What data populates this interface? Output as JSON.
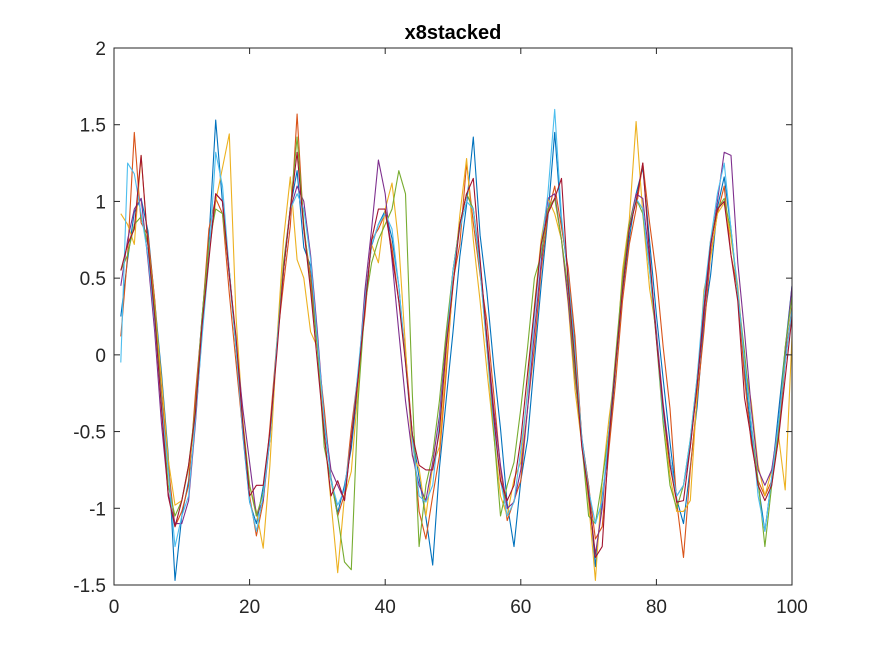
{
  "chart_data": {
    "type": "line",
    "title": "x8stacked",
    "xlabel": "",
    "ylabel": "",
    "xlim": [
      0,
      100
    ],
    "ylim": [
      -1.5,
      2
    ],
    "xticks": [
      0,
      20,
      40,
      60,
      80,
      100
    ],
    "yticks": [
      -1.5,
      -1,
      -0.5,
      0,
      0.5,
      1,
      1.5,
      2
    ],
    "xtick_labels": [
      "0",
      "20",
      "40",
      "60",
      "80",
      "100"
    ],
    "ytick_labels": [
      "-1.5",
      "-1",
      "-0.5",
      "0",
      "0.5",
      "1",
      "1.5",
      "2"
    ],
    "grid": false,
    "legend": "none",
    "box": true,
    "x": [
      1,
      2,
      3,
      4,
      5,
      6,
      7,
      8,
      9,
      10,
      11,
      12,
      13,
      14,
      15,
      16,
      17,
      18,
      19,
      20,
      21,
      22,
      23,
      24,
      25,
      26,
      27,
      28,
      29,
      30,
      31,
      32,
      33,
      34,
      35,
      36,
      37,
      38,
      39,
      40,
      41,
      42,
      43,
      44,
      45,
      46,
      47,
      48,
      49,
      50,
      51,
      52,
      53,
      54,
      55,
      56,
      57,
      58,
      59,
      60,
      61,
      62,
      63,
      64,
      65,
      66,
      67,
      68,
      69,
      70,
      71,
      72,
      73,
      74,
      75,
      76,
      77,
      78,
      79,
      80,
      81,
      82,
      83,
      84,
      85,
      86,
      87,
      88,
      89,
      90,
      91,
      92,
      93,
      94,
      95,
      96,
      97,
      98,
      99,
      100
    ],
    "series": [
      {
        "color": "#0072BD",
        "values": [
          0.25,
          0.62,
          0.93,
          1.02,
          0.81,
          0.35,
          -0.12,
          -0.65,
          -1.47,
          -1.05,
          -0.82,
          -0.3,
          0.25,
          0.75,
          1.53,
          0.99,
          0.52,
          0.05,
          -0.52,
          -0.96,
          -1.1,
          -0.86,
          -0.52,
          0.04,
          0.55,
          0.96,
          1.2,
          0.7,
          0.58,
          0.05,
          -0.45,
          -0.8,
          -1.03,
          -0.85,
          -0.61,
          -0.18,
          0.37,
          0.71,
          0.85,
          0.94,
          0.76,
          0.45,
          -0.03,
          -0.52,
          -0.8,
          -1.06,
          -1.37,
          -0.74,
          -0.29,
          0.15,
          0.64,
          0.98,
          1.42,
          0.78,
          0.41,
          -0.07,
          -0.48,
          -0.97,
          -1.25,
          -0.82,
          -0.55,
          -0.04,
          0.45,
          0.9,
          1.45,
          0.86,
          0.51,
          0.06,
          -0.54,
          -0.85,
          -1.38,
          -0.92,
          -0.59,
          -0.08,
          0.41,
          0.76,
          1.05,
          1.22,
          0.74,
          0.26,
          -0.16,
          -0.57,
          -0.94,
          -1.1,
          -0.73,
          -0.34,
          0.22,
          0.52,
          0.96,
          1.16,
          0.82,
          0.4,
          -0.1,
          -0.52,
          -0.84,
          -1.15,
          -0.8,
          -0.38,
          0.04,
          0.45
        ]
      },
      {
        "color": "#D95319",
        "values": [
          0.12,
          0.65,
          1.45,
          0.86,
          0.78,
          0.36,
          -0.25,
          -0.72,
          -1.12,
          -1.02,
          -0.85,
          -0.26,
          0.23,
          0.82,
          1.02,
          0.92,
          0.4,
          -0.05,
          -0.5,
          -0.92,
          -1.18,
          -0.96,
          -0.47,
          0.07,
          0.46,
          0.84,
          1.57,
          0.82,
          0.51,
          0.05,
          -0.35,
          -0.81,
          -1.05,
          -0.91,
          -0.48,
          -0.12,
          0.26,
          0.75,
          0.82,
          0.92,
          0.7,
          0.35,
          0.02,
          -0.52,
          -1.02,
          -1.2,
          -0.92,
          -0.66,
          -0.12,
          0.48,
          0.72,
          1.25,
          0.86,
          0.52,
          0.22,
          -0.25,
          -0.74,
          -1.08,
          -0.95,
          -0.82,
          -0.35,
          0.05,
          0.55,
          0.92,
          1.1,
          0.83,
          0.56,
          0.12,
          -0.55,
          -0.85,
          -1.2,
          -1.12,
          -0.62,
          -0.17,
          0.35,
          0.72,
          0.95,
          1.25,
          0.86,
          0.52,
          0.05,
          -0.35,
          -0.96,
          -1.32,
          -0.75,
          -0.29,
          0.15,
          0.65,
          0.92,
          1.1,
          0.65,
          0.42,
          -0.15,
          -0.58,
          -0.82,
          -0.92,
          -0.82,
          -0.55,
          -0.05,
          0.32
        ]
      },
      {
        "color": "#EDB120",
        "values": [
          0.92,
          0.85,
          0.72,
          1.3,
          0.72,
          0.32,
          -0.16,
          -0.68,
          -0.98,
          -0.95,
          -0.74,
          -0.42,
          0.22,
          0.65,
          1.0,
          1.22,
          1.44,
          0.25,
          -0.42,
          -0.85,
          -1.02,
          -1.26,
          -0.72,
          0.06,
          0.75,
          1.16,
          0.62,
          0.5,
          0.15,
          0.05,
          -0.5,
          -0.96,
          -1.42,
          -0.92,
          -0.76,
          -0.22,
          0.35,
          0.72,
          0.6,
          0.95,
          1.12,
          0.72,
          0.05,
          -0.66,
          -0.74,
          -1.05,
          -0.72,
          -0.6,
          -0.05,
          0.45,
          0.91,
          1.28,
          0.75,
          0.35,
          -0.1,
          -0.52,
          -0.92,
          -1.05,
          -0.81,
          -0.7,
          -0.22,
          0.32,
          0.75,
          1.02,
          0.92,
          0.75,
          0.32,
          -0.23,
          -0.58,
          -0.96,
          -1.47,
          -0.82,
          -0.42,
          -0.08,
          0.55,
          0.88,
          1.52,
          0.92,
          0.43,
          0.15,
          -0.38,
          -0.79,
          -1.02,
          -1.02,
          -0.95,
          -0.25,
          0.42,
          0.63,
          0.92,
          0.99,
          0.76,
          0.45,
          -0.05,
          -0.31,
          -0.72,
          -0.92,
          -0.75,
          -0.52,
          -0.88,
          0.12
        ]
      },
      {
        "color": "#7E2F8E",
        "values": [
          0.45,
          0.75,
          0.95,
          1.02,
          0.62,
          0.15,
          -0.45,
          -0.9,
          -1.1,
          -1.1,
          -0.95,
          -0.45,
          0.15,
          0.65,
          1.05,
          1.0,
          0.55,
          0.07,
          -0.35,
          -0.7,
          -1.05,
          -0.95,
          -0.55,
          0.05,
          0.55,
          0.95,
          1.1,
          1.0,
          0.65,
          0.15,
          -0.42,
          -0.75,
          -0.85,
          -0.95,
          -0.55,
          -0.15,
          0.42,
          0.82,
          1.27,
          1.05,
          0.62,
          0.15,
          -0.3,
          -0.65,
          -0.85,
          -0.95,
          -0.7,
          -0.4,
          0.1,
          0.55,
          0.85,
          1.05,
          0.95,
          0.6,
          0.12,
          -0.35,
          -0.72,
          -1.0,
          -0.96,
          -0.75,
          -0.35,
          0.15,
          0.6,
          1.02,
          1.05,
          0.75,
          0.35,
          -0.15,
          -0.55,
          -0.92,
          -1.3,
          -1.0,
          -0.5,
          -0.05,
          0.45,
          0.85,
          1.05,
          1.02,
          0.6,
          0.15,
          -0.32,
          -0.68,
          -0.92,
          -0.85,
          -0.6,
          -0.2,
          0.25,
          0.7,
          1.0,
          1.32,
          1.3,
          0.6,
          0.15,
          -0.35,
          -0.75,
          -0.85,
          -0.75,
          -0.45,
          0.0,
          0.45
        ]
      },
      {
        "color": "#77AC30",
        "values": [
          0.55,
          0.65,
          0.85,
          0.9,
          0.72,
          0.3,
          -0.3,
          -0.85,
          -1.05,
          -0.95,
          -0.72,
          -0.35,
          0.25,
          0.72,
          0.95,
          0.92,
          0.55,
          0.05,
          -0.45,
          -0.85,
          -1.05,
          -0.9,
          -0.55,
          0.05,
          0.6,
          0.95,
          1.42,
          0.85,
          0.45,
          0.05,
          -0.6,
          -0.82,
          -1.05,
          -1.35,
          -1.4,
          -0.3,
          0.32,
          0.6,
          0.75,
          0.85,
          0.95,
          1.2,
          1.05,
          -0.25,
          -1.25,
          -0.85,
          -0.65,
          -0.3,
          0.15,
          0.55,
          0.85,
          1.05,
          0.95,
          0.55,
          0.05,
          -0.5,
          -1.05,
          -0.85,
          -0.7,
          -0.35,
          0.05,
          0.5,
          0.65,
          0.95,
          1.02,
          0.75,
          0.42,
          -0.12,
          -0.58,
          -1.05,
          -1.1,
          -0.82,
          -0.5,
          0.0,
          0.5,
          0.85,
          1.02,
          0.92,
          0.55,
          0.1,
          -0.45,
          -0.85,
          -1.0,
          -0.85,
          -0.55,
          -0.15,
          0.3,
          0.75,
          0.95,
          1.02,
          0.8,
          0.4,
          0.02,
          -0.45,
          -0.82,
          -1.25,
          -0.85,
          -0.5,
          0.05,
          0.38
        ]
      },
      {
        "color": "#4DBEEE",
        "values": [
          -0.05,
          1.25,
          1.18,
          0.92,
          0.65,
          0.22,
          -0.32,
          -0.75,
          -1.25,
          -1.05,
          -0.92,
          -0.42,
          0.12,
          0.62,
          1.32,
          1.1,
          0.55,
          0.05,
          -0.5,
          -0.95,
          -1.15,
          -0.92,
          -0.55,
          0.05,
          0.55,
          0.95,
          1.05,
          0.95,
          0.62,
          0.1,
          -0.42,
          -0.82,
          -0.98,
          -0.88,
          -0.55,
          -0.1,
          0.35,
          0.72,
          0.85,
          0.92,
          0.82,
          0.45,
          -0.05,
          -0.55,
          -0.92,
          -0.96,
          -0.85,
          -0.45,
          0.05,
          0.55,
          0.82,
          1.0,
          0.95,
          0.55,
          0.05,
          -0.45,
          -0.82,
          -1.05,
          -0.96,
          -0.62,
          -0.25,
          0.25,
          0.7,
          1.05,
          1.6,
          0.9,
          0.5,
          0.02,
          -0.55,
          -0.88,
          -1.1,
          -0.95,
          -0.5,
          -0.05,
          0.42,
          0.82,
          1.02,
          0.95,
          0.55,
          0.12,
          -0.4,
          -0.68,
          -0.92,
          -0.85,
          -0.55,
          -0.15,
          0.38,
          0.75,
          1.05,
          1.25,
          0.82,
          0.42,
          -0.05,
          -0.45,
          -0.92,
          -1.15,
          -0.8,
          -0.45,
          -0.05,
          0.3
        ]
      },
      {
        "color": "#A2142F",
        "values": [
          0.55,
          0.72,
          0.82,
          1.3,
          0.72,
          0.25,
          -0.35,
          -0.92,
          -1.12,
          -0.95,
          -0.72,
          -0.38,
          0.2,
          0.62,
          1.05,
          1.0,
          0.52,
          0.12,
          -0.45,
          -0.92,
          -0.85,
          -0.85,
          -0.5,
          0.0,
          0.55,
          0.95,
          1.32,
          0.82,
          0.42,
          -0.05,
          -0.52,
          -0.92,
          -0.82,
          -0.95,
          -0.55,
          -0.15,
          0.3,
          0.75,
          0.95,
          0.95,
          0.65,
          0.35,
          -0.05,
          -0.52,
          -0.72,
          -0.75,
          -0.75,
          -0.5,
          0.05,
          0.45,
          0.85,
          1.05,
          1.15,
          0.62,
          0.1,
          -0.4,
          -0.82,
          -0.95,
          -0.85,
          -0.55,
          -0.12,
          0.3,
          0.72,
          0.92,
          1.02,
          1.15,
          0.45,
          -0.05,
          -0.6,
          -0.9,
          -1.32,
          -1.25,
          -0.55,
          -0.05,
          0.42,
          0.82,
          1.0,
          1.25,
          0.65,
          0.1,
          -0.35,
          -0.72,
          -0.96,
          -0.95,
          -0.6,
          -0.2,
          0.3,
          0.72,
          0.95,
          1.0,
          0.65,
          0.35,
          -0.28,
          -0.55,
          -0.85,
          -0.95,
          -0.85,
          -0.55,
          -0.15,
          0.25
        ]
      }
    ]
  }
}
